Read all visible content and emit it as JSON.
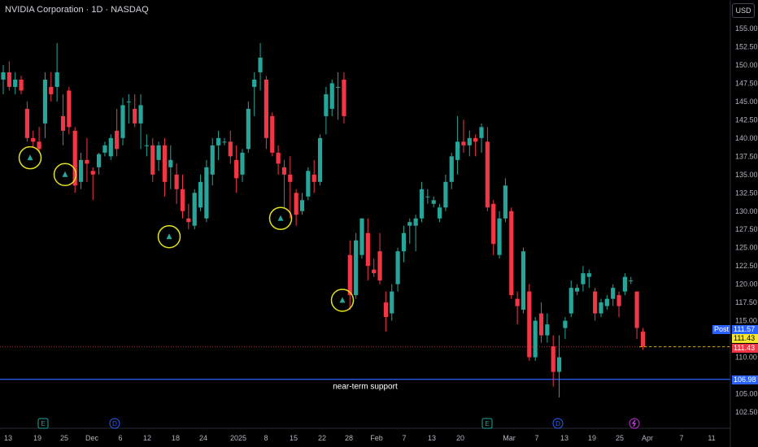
{
  "header": {
    "title": "NVIDIA Corporation · 1D · NASDAQ",
    "currency": "USD"
  },
  "annotation": {
    "support_label": "near-term support"
  },
  "price_tags": {
    "post_label": "Post",
    "post_value": "111.57",
    "close_value": "111.43",
    "last_value": "111.43",
    "support_value": "106.98"
  },
  "colors": {
    "up": "#26a69a",
    "down": "#f23645",
    "support_line": "#2962ff",
    "circle": "#e3e21f",
    "axis_text": "#b2b5be",
    "earnings": "#26a69a",
    "dividend": "#2962ff",
    "split": "#9c27b0"
  },
  "chart_data": {
    "type": "candlestick",
    "symbol": "NVDA",
    "interval": "1D",
    "y_ticks": [
      "155.00",
      "152.50",
      "150.00",
      "147.50",
      "145.00",
      "142.50",
      "140.00",
      "137.50",
      "135.00",
      "132.50",
      "130.00",
      "127.50",
      "125.00",
      "122.50",
      "120.00",
      "117.50",
      "115.00",
      "110.00",
      "105.00",
      "102.50"
    ],
    "ylim": [
      102.5,
      155
    ],
    "x_ticks": [
      "13",
      "19",
      "25",
      "Dec",
      "6",
      "12",
      "18",
      "24",
      "2025",
      "8",
      "15",
      "22",
      "28",
      "Feb",
      "7",
      "13",
      "20",
      "Mar",
      "7",
      "13",
      "19",
      "25",
      "Apr",
      "7",
      "11"
    ],
    "candles": [
      {
        "o": 148,
        "h": 150,
        "l": 146,
        "c": 149
      },
      {
        "o": 149,
        "h": 150.5,
        "l": 146.5,
        "c": 147
      },
      {
        "o": 147,
        "h": 149,
        "l": 146,
        "c": 148
      },
      {
        "o": 148,
        "h": 148.5,
        "l": 146,
        "c": 146.5
      },
      {
        "o": 144,
        "h": 145,
        "l": 139.5,
        "c": 140
      },
      {
        "o": 140,
        "h": 141,
        "l": 138.8,
        "c": 139.5
      },
      {
        "o": 139.5,
        "h": 141.5,
        "l": 138,
        "c": 138.5
      },
      {
        "o": 142,
        "h": 149,
        "l": 140,
        "c": 148
      },
      {
        "o": 147,
        "h": 149,
        "l": 145,
        "c": 146
      },
      {
        "o": 147,
        "h": 153,
        "l": 145,
        "c": 149
      },
      {
        "o": 143,
        "h": 146,
        "l": 139,
        "c": 141
      },
      {
        "o": 146.5,
        "h": 147,
        "l": 140.5,
        "c": 141.5
      },
      {
        "o": 141,
        "h": 141.5,
        "l": 132.5,
        "c": 133.5
      },
      {
        "o": 134,
        "h": 138,
        "l": 133,
        "c": 137
      },
      {
        "o": 137,
        "h": 140,
        "l": 134,
        "c": 136.5
      },
      {
        "o": 135.5,
        "h": 136,
        "l": 131.5,
        "c": 135
      },
      {
        "o": 136,
        "h": 138,
        "l": 135,
        "c": 137.8
      },
      {
        "o": 138,
        "h": 139.5,
        "l": 137.5,
        "c": 139
      },
      {
        "o": 137.5,
        "h": 140.5,
        "l": 137,
        "c": 140
      },
      {
        "o": 141,
        "h": 144,
        "l": 137.5,
        "c": 138.5
      },
      {
        "o": 140,
        "h": 145.5,
        "l": 139,
        "c": 144.5
      },
      {
        "o": 145,
        "h": 146,
        "l": 142,
        "c": 145
      },
      {
        "o": 144,
        "h": 146,
        "l": 141.5,
        "c": 142
      },
      {
        "o": 142,
        "h": 146,
        "l": 138.5,
        "c": 144.5
      },
      {
        "o": 139,
        "h": 140.5,
        "l": 137.5,
        "c": 139
      },
      {
        "o": 139,
        "h": 140,
        "l": 134,
        "c": 135
      },
      {
        "o": 137,
        "h": 139.5,
        "l": 135.5,
        "c": 139
      },
      {
        "o": 139,
        "h": 140,
        "l": 132,
        "c": 134
      },
      {
        "o": 136,
        "h": 139,
        "l": 133,
        "c": 137
      },
      {
        "o": 135,
        "h": 136.5,
        "l": 131,
        "c": 133
      },
      {
        "o": 133,
        "h": 135,
        "l": 129,
        "c": 130
      },
      {
        "o": 129,
        "h": 131,
        "l": 127.5,
        "c": 128.5
      },
      {
        "o": 128,
        "h": 133,
        "l": 127.5,
        "c": 132.5
      },
      {
        "o": 130.5,
        "h": 135,
        "l": 130,
        "c": 134
      },
      {
        "o": 129,
        "h": 137,
        "l": 128.5,
        "c": 136
      },
      {
        "o": 135,
        "h": 140,
        "l": 133.5,
        "c": 139
      },
      {
        "o": 139,
        "h": 141,
        "l": 137,
        "c": 140
      },
      {
        "o": 139.5,
        "h": 140,
        "l": 139,
        "c": 139.5
      },
      {
        "o": 139.5,
        "h": 141,
        "l": 136.5,
        "c": 137.5
      },
      {
        "o": 137,
        "h": 139,
        "l": 132.5,
        "c": 134.5
      },
      {
        "o": 135,
        "h": 138.5,
        "l": 134,
        "c": 138
      },
      {
        "o": 138.5,
        "h": 145,
        "l": 138,
        "c": 144
      },
      {
        "o": 147,
        "h": 149,
        "l": 143,
        "c": 148
      },
      {
        "o": 149,
        "h": 153,
        "l": 146.5,
        "c": 151
      },
      {
        "o": 148,
        "h": 148.5,
        "l": 138.5,
        "c": 140
      },
      {
        "o": 143,
        "h": 143.5,
        "l": 137.5,
        "c": 138
      },
      {
        "o": 138,
        "h": 139,
        "l": 135,
        "c": 136.5
      },
      {
        "o": 136,
        "h": 137,
        "l": 130.5,
        "c": 135
      },
      {
        "o": 135,
        "h": 137.5,
        "l": 129,
        "c": 134
      },
      {
        "o": 132.5,
        "h": 133,
        "l": 128,
        "c": 129.5
      },
      {
        "o": 130,
        "h": 132.5,
        "l": 129.5,
        "c": 131.5
      },
      {
        "o": 132,
        "h": 136,
        "l": 131.5,
        "c": 135.5
      },
      {
        "o": 135,
        "h": 137,
        "l": 132.5,
        "c": 134
      },
      {
        "o": 134,
        "h": 140.5,
        "l": 133.5,
        "c": 140
      },
      {
        "o": 143,
        "h": 147,
        "l": 140.5,
        "c": 146
      },
      {
        "o": 144,
        "h": 148,
        "l": 143,
        "c": 147.5
      },
      {
        "o": 147,
        "h": 149,
        "l": 142.5,
        "c": 147
      },
      {
        "o": 148,
        "h": 149,
        "l": 142,
        "c": 143
      },
      {
        "o": 124,
        "h": 126,
        "l": 116.5,
        "c": 118.5
      },
      {
        "o": 118.5,
        "h": 127,
        "l": 118,
        "c": 126
      },
      {
        "o": 124,
        "h": 129,
        "l": 123.5,
        "c": 129
      },
      {
        "o": 127,
        "h": 129,
        "l": 120.5,
        "c": 122.5
      },
      {
        "o": 122,
        "h": 123.5,
        "l": 121,
        "c": 121.5
      },
      {
        "o": 124.5,
        "h": 127,
        "l": 120,
        "c": 120.5
      },
      {
        "o": 117.5,
        "h": 119,
        "l": 113.5,
        "c": 115.5
      },
      {
        "o": 116,
        "h": 120,
        "l": 115,
        "c": 119
      },
      {
        "o": 120,
        "h": 125,
        "l": 119,
        "c": 124.5
      },
      {
        "o": 124.5,
        "h": 128,
        "l": 123,
        "c": 127
      },
      {
        "o": 128,
        "h": 129,
        "l": 125.5,
        "c": 128.5
      },
      {
        "o": 128,
        "h": 129.5,
        "l": 124.5,
        "c": 129
      },
      {
        "o": 129,
        "h": 134,
        "l": 128.5,
        "c": 133
      },
      {
        "o": 132,
        "h": 133,
        "l": 131,
        "c": 132
      },
      {
        "o": 131,
        "h": 132,
        "l": 130.5,
        "c": 131.5
      },
      {
        "o": 129,
        "h": 131,
        "l": 128.5,
        "c": 130.5
      },
      {
        "o": 130.5,
        "h": 135,
        "l": 130,
        "c": 134
      },
      {
        "o": 134,
        "h": 138,
        "l": 133,
        "c": 137.5
      },
      {
        "o": 137,
        "h": 143,
        "l": 135,
        "c": 139.5
      },
      {
        "o": 139.5,
        "h": 142.5,
        "l": 138,
        "c": 139
      },
      {
        "o": 139,
        "h": 141,
        "l": 137.5,
        "c": 140
      },
      {
        "o": 140,
        "h": 140.5,
        "l": 137.5,
        "c": 139.5
      },
      {
        "o": 140,
        "h": 142,
        "l": 138,
        "c": 141.5
      },
      {
        "o": 139.5,
        "h": 141.5,
        "l": 130,
        "c": 130.5
      },
      {
        "o": 131,
        "h": 131.5,
        "l": 124,
        "c": 125.5
      },
      {
        "o": 124,
        "h": 130,
        "l": 123.5,
        "c": 129
      },
      {
        "o": 129,
        "h": 134.5,
        "l": 128.5,
        "c": 133.5
      },
      {
        "o": 130,
        "h": 130.5,
        "l": 118,
        "c": 118.5
      },
      {
        "o": 118,
        "h": 119,
        "l": 114.5,
        "c": 117
      },
      {
        "o": 116.5,
        "h": 125,
        "l": 116,
        "c": 124.5
      },
      {
        "o": 119,
        "h": 120,
        "l": 109.5,
        "c": 110
      },
      {
        "o": 110,
        "h": 115.5,
        "l": 109.5,
        "c": 115
      },
      {
        "o": 116,
        "h": 117.5,
        "l": 112,
        "c": 113
      },
      {
        "o": 113,
        "h": 116,
        "l": 112,
        "c": 114.5
      },
      {
        "o": 111.5,
        "h": 113,
        "l": 106,
        "c": 108
      },
      {
        "o": 108,
        "h": 113,
        "l": 104.5,
        "c": 110
      },
      {
        "o": 114,
        "h": 115.5,
        "l": 112.5,
        "c": 115
      },
      {
        "o": 116,
        "h": 120.5,
        "l": 115.5,
        "c": 119.5
      },
      {
        "o": 119,
        "h": 120,
        "l": 118.5,
        "c": 119.5
      },
      {
        "o": 120,
        "h": 122.5,
        "l": 119,
        "c": 121.5
      },
      {
        "o": 121,
        "h": 122,
        "l": 119.5,
        "c": 121.5
      },
      {
        "o": 119,
        "h": 119.5,
        "l": 115,
        "c": 116
      },
      {
        "o": 116,
        "h": 118,
        "l": 115.5,
        "c": 117.5
      },
      {
        "o": 117,
        "h": 118.5,
        "l": 116.5,
        "c": 118
      },
      {
        "o": 118,
        "h": 120,
        "l": 117,
        "c": 119.5
      },
      {
        "o": 118.5,
        "h": 119,
        "l": 115.5,
        "c": 117
      },
      {
        "o": 119,
        "h": 121.5,
        "l": 118.5,
        "c": 121
      },
      {
        "o": 120.5,
        "h": 121,
        "l": 120,
        "c": 120.5
      },
      {
        "o": 119,
        "h": 119,
        "l": 112.5,
        "c": 114
      },
      {
        "o": 113.5,
        "h": 114,
        "l": 111,
        "c": 111.43
      }
    ],
    "support_level": 106.98,
    "annotation_circles_at_lows": [
      137.3,
      135.0,
      126.5,
      129.0,
      117.8
    ],
    "events": [
      "E",
      "D",
      "E",
      "D",
      "split"
    ]
  }
}
